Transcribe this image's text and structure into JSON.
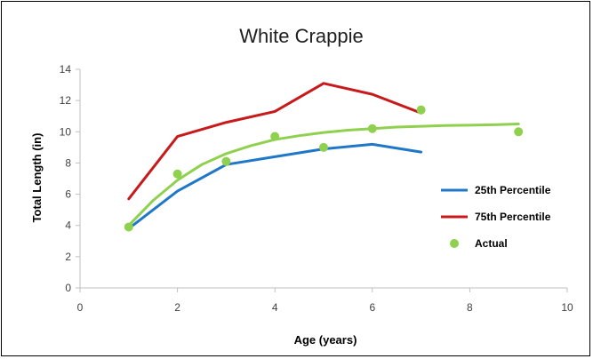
{
  "chart_data": {
    "type": "line",
    "title": "White Crappie",
    "xlabel": "Age (years)",
    "ylabel": "Total Length (in)",
    "xlim": [
      0,
      10
    ],
    "ylim": [
      0,
      14
    ],
    "x_ticks": [
      "0",
      "2",
      "4",
      "6",
      "8",
      "10"
    ],
    "y_ticks": [
      "0",
      "2",
      "4",
      "6",
      "8",
      "10",
      "12",
      "14"
    ],
    "grid": false,
    "legend_position": "right",
    "series": [
      {
        "name": "25th Percentile",
        "kind": "line",
        "color": "#1f77c9",
        "x": [
          1,
          2,
          3,
          4,
          5,
          6,
          7
        ],
        "y": [
          3.8,
          6.2,
          7.9,
          8.4,
          8.9,
          9.2,
          8.7
        ]
      },
      {
        "name": "75th Percentile",
        "kind": "line",
        "color": "#c8191b",
        "x": [
          1,
          2,
          3,
          4,
          5,
          6,
          7
        ],
        "y": [
          5.7,
          9.7,
          10.6,
          11.3,
          13.1,
          12.4,
          11.2
        ]
      },
      {
        "name": "Actual",
        "kind": "scatter",
        "color": "#8fd14f",
        "x": [
          1,
          2,
          3,
          4,
          5,
          6,
          7,
          9
        ],
        "y": [
          3.9,
          7.3,
          8.1,
          9.7,
          9.0,
          10.2,
          11.4,
          10.0
        ]
      }
    ],
    "fit_curve": {
      "color": "#8fd14f",
      "x": [
        1,
        1.5,
        2,
        2.5,
        3,
        3.5,
        4,
        4.5,
        5,
        5.5,
        6,
        6.5,
        7,
        7.5,
        8,
        8.5,
        9
      ],
      "y": [
        4.0,
        5.6,
        6.9,
        7.9,
        8.6,
        9.1,
        9.5,
        9.75,
        9.95,
        10.1,
        10.2,
        10.3,
        10.35,
        10.4,
        10.42,
        10.45,
        10.5
      ]
    }
  }
}
